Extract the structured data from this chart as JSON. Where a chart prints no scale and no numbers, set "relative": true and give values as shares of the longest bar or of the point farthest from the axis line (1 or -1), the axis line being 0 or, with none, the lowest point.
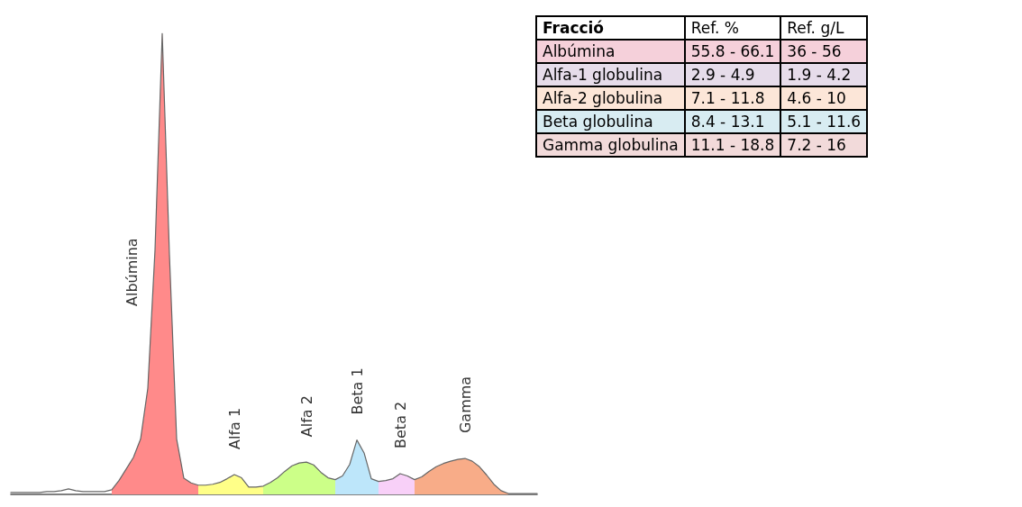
{
  "chart_data": [
    {
      "type": "area",
      "relative": true,
      "legend": false,
      "marker": "none",
      "categories": [
        null,
        null,
        null,
        null,
        null,
        null,
        null,
        null,
        null,
        null,
        null,
        null,
        null,
        null,
        null,
        null,
        null,
        null,
        null,
        null,
        null,
        null,
        null,
        null,
        null,
        null,
        null,
        null,
        null,
        null,
        null,
        null,
        null,
        null,
        null,
        null,
        null,
        null,
        null,
        null,
        null,
        null,
        null,
        null,
        null,
        null,
        null,
        null,
        null,
        null,
        null,
        null,
        null,
        null,
        null,
        null,
        null,
        null,
        null,
        null,
        null,
        null,
        null,
        null,
        null,
        null,
        null,
        null,
        null,
        null,
        null,
        null,
        null,
        null
      ],
      "series": [
        {
          "type": "line",
          "color": "#666666",
          "values": [
            0.004,
            0.004,
            0.004,
            0.004,
            0.004,
            0.006,
            0.006,
            0.008,
            0.012,
            0.008,
            0.006,
            0.006,
            0.006,
            0.006,
            0.01,
            0.03,
            0.055,
            0.08,
            0.12,
            0.23,
            0.53,
            1,
            0.52,
            0.12,
            0.035,
            0.025,
            0.02,
            0.02,
            0.022,
            0.026,
            0.034,
            0.043,
            0.036,
            0.016,
            0.016,
            0.018,
            0.026,
            0.036,
            0.05,
            0.062,
            0.068,
            0.07,
            0.064,
            0.048,
            0.036,
            0.032,
            0.04,
            0.065,
            0.118,
            0.09,
            0.034,
            0.028,
            0.03,
            0.034,
            0.045,
            0.04,
            0.032,
            0.038,
            0.05,
            0.06,
            0.067,
            0.072,
            0.076,
            0.078,
            0.072,
            0.06,
            0.042,
            0.022,
            0.008,
            0.002,
            0.002,
            0.002,
            0.002,
            0.002
          ]
        },
        {
          "name": "Albúmina",
          "color": "#ff8a8a",
          "values": [
            null,
            null,
            null,
            null,
            null,
            null,
            null,
            null,
            null,
            null,
            null,
            null,
            null,
            null,
            0.01,
            0.03,
            0.055,
            0.08,
            0.12,
            0.23,
            0.53,
            1,
            0.52,
            0.12,
            0.035,
            0.025,
            0.02,
            null,
            null,
            null,
            null,
            null,
            null,
            null,
            null,
            null,
            null,
            null,
            null,
            null,
            null,
            null,
            null,
            null,
            null,
            null,
            null,
            null,
            null,
            null,
            null,
            null,
            null,
            null,
            null,
            null,
            null,
            null,
            null,
            null,
            null,
            null,
            null,
            null,
            null,
            null,
            null,
            null,
            null,
            null,
            null,
            null,
            null,
            null
          ]
        },
        {
          "name": "Alfa 1",
          "color": "#ffff88",
          "values": [
            null,
            null,
            null,
            null,
            null,
            null,
            null,
            null,
            null,
            null,
            null,
            null,
            null,
            null,
            null,
            null,
            null,
            null,
            null,
            null,
            null,
            null,
            null,
            null,
            null,
            null,
            0.02,
            0.02,
            0.022,
            0.026,
            0.034,
            0.043,
            0.036,
            0.016,
            0.016,
            0.018,
            null,
            null,
            null,
            null,
            null,
            null,
            null,
            null,
            null,
            null,
            null,
            null,
            null,
            null,
            null,
            null,
            null,
            null,
            null,
            null,
            null,
            null,
            null,
            null,
            null,
            null,
            null,
            null,
            null,
            null,
            null,
            null,
            null,
            null,
            null,
            null,
            null,
            null
          ]
        },
        {
          "name": "Alfa 2",
          "color": "#ccff88",
          "values": [
            null,
            null,
            null,
            null,
            null,
            null,
            null,
            null,
            null,
            null,
            null,
            null,
            null,
            null,
            null,
            null,
            null,
            null,
            null,
            null,
            null,
            null,
            null,
            null,
            null,
            null,
            null,
            null,
            null,
            null,
            null,
            null,
            null,
            null,
            null,
            0.018,
            0.026,
            0.036,
            0.05,
            0.062,
            0.068,
            0.07,
            0.064,
            0.048,
            0.036,
            0.032,
            null,
            null,
            null,
            null,
            null,
            null,
            null,
            null,
            null,
            null,
            null,
            null,
            null,
            null,
            null,
            null,
            null,
            null,
            null,
            null,
            null,
            null,
            null,
            null,
            null,
            null,
            null,
            null
          ]
        },
        {
          "name": "Beta 1",
          "color": "#bde6fa",
          "values": [
            null,
            null,
            null,
            null,
            null,
            null,
            null,
            null,
            null,
            null,
            null,
            null,
            null,
            null,
            null,
            null,
            null,
            null,
            null,
            null,
            null,
            null,
            null,
            null,
            null,
            null,
            null,
            null,
            null,
            null,
            null,
            null,
            null,
            null,
            null,
            null,
            null,
            null,
            null,
            null,
            null,
            null,
            null,
            null,
            null,
            0.032,
            0.04,
            0.065,
            0.118,
            0.09,
            0.034,
            0.028,
            null,
            null,
            null,
            null,
            null,
            null,
            null,
            null,
            null,
            null,
            null,
            null,
            null,
            null,
            null,
            null,
            null,
            null,
            null,
            null,
            null,
            null
          ]
        },
        {
          "name": "Beta 2",
          "color": "#f8d0f8",
          "values": [
            null,
            null,
            null,
            null,
            null,
            null,
            null,
            null,
            null,
            null,
            null,
            null,
            null,
            null,
            null,
            null,
            null,
            null,
            null,
            null,
            null,
            null,
            null,
            null,
            null,
            null,
            null,
            null,
            null,
            null,
            null,
            null,
            null,
            null,
            null,
            null,
            null,
            null,
            null,
            null,
            null,
            null,
            null,
            null,
            null,
            null,
            null,
            null,
            null,
            null,
            null,
            0.028,
            0.03,
            0.034,
            0.045,
            0.04,
            0.032,
            null,
            null,
            null,
            null,
            null,
            null,
            null,
            null,
            null,
            null,
            null,
            null,
            null,
            null,
            null,
            null,
            null
          ]
        },
        {
          "name": "Gamma",
          "color": "#f8ac88",
          "values": [
            null,
            null,
            null,
            null,
            null,
            null,
            null,
            null,
            null,
            null,
            null,
            null,
            null,
            null,
            null,
            null,
            null,
            null,
            null,
            null,
            null,
            null,
            null,
            null,
            null,
            null,
            null,
            null,
            null,
            null,
            null,
            null,
            null,
            null,
            null,
            null,
            null,
            null,
            null,
            null,
            null,
            null,
            null,
            null,
            null,
            null,
            null,
            null,
            null,
            null,
            null,
            null,
            null,
            null,
            null,
            null,
            0.032,
            0.038,
            0.05,
            0.06,
            0.067,
            0.072,
            0.076,
            0.078,
            0.072,
            0.06,
            0.042,
            0.022,
            0.008,
            0.002,
            null,
            null,
            null,
            null
          ]
        }
      ]
    },
    {
      "type": "other",
      "ylabel": "Fracció",
      "categories": [
        "Ref. %",
        "Ref. g/L"
      ],
      "y_categories": [
        "Albúmina",
        "Alfa-1 globulina",
        "Alfa-2 globulina",
        "Beta globulina",
        "Gamma globulina"
      ],
      "colors": [
        "#f5d0da",
        "#e6dcea",
        "#fce6d8",
        "#d8ecf2",
        "#f2dada"
      ],
      "cell_labels": [
        [
          "55.8 - 66.1",
          "36 - 56"
        ],
        [
          "2.9 - 4.9",
          "1.9 - 4.2"
        ],
        [
          "7.1 - 11.8",
          "4.6 - 10"
        ],
        [
          "8.4 - 13.1",
          "5.1 - 11.6"
        ],
        [
          "11.1 - 18.8",
          "7.2 - 16"
        ]
      ]
    }
  ]
}
